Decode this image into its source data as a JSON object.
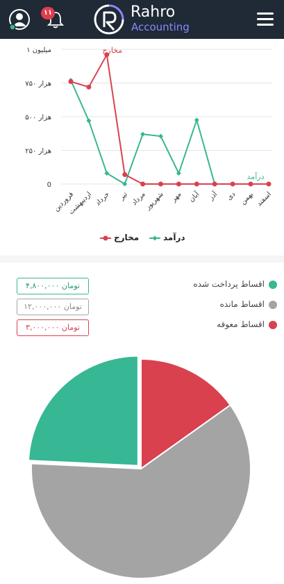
{
  "header": {
    "brand": "Rahro",
    "brand_sub": "Accounting",
    "notification_count": "۱۱"
  },
  "chart_data": {
    "type": "line",
    "categories": [
      "فروردین",
      "اردیبهشت",
      "خرداد",
      "تیر",
      "مرداد",
      "شهریور",
      "مهر",
      "آبان",
      "آذر",
      "دی",
      "بهمن",
      "اسفند"
    ],
    "series": [
      {
        "name": "مخارج",
        "color": "#d9414f",
        "values": [
          760,
          720,
          960,
          70,
          0,
          0,
          0,
          0,
          0,
          0,
          0,
          0
        ]
      },
      {
        "name": "درآمد",
        "color": "#37b794",
        "values": [
          770,
          470,
          80,
          0,
          370,
          355,
          80,
          475,
          0,
          0,
          0,
          0
        ]
      }
    ],
    "y_ticks": [
      {
        "value": 0,
        "label": "0"
      },
      {
        "value": 250,
        "label": "هزار ۲۵۰"
      },
      {
        "value": 500,
        "label": "هزار ۵۰۰"
      },
      {
        "value": 750,
        "label": "هزار ۷۵۰"
      },
      {
        "value": 1000,
        "label": "میلیون ۱"
      }
    ],
    "ylim": [
      0,
      1000
    ],
    "grid": true,
    "legend_position": "bottom"
  },
  "pie": {
    "slices": [
      {
        "label": "اقساط پرداخت شده",
        "amount": "۴,۸۰۰,۰۰۰ تومان",
        "value": 4800000,
        "color": "#37b794",
        "text_color": "#2a9a7a"
      },
      {
        "label": "اقساط مانده",
        "amount": "۱۲,۰۰۰,۰۰۰ تومان",
        "value": 12000000,
        "color": "#a4a4a4",
        "text_color": "#8a8a8a"
      },
      {
        "label": "اقساط معوقه",
        "amount": "۳,۰۰۰,۰۰۰ تومان",
        "value": 3000000,
        "color": "#d9414f",
        "text_color": "#d9414f"
      }
    ]
  }
}
